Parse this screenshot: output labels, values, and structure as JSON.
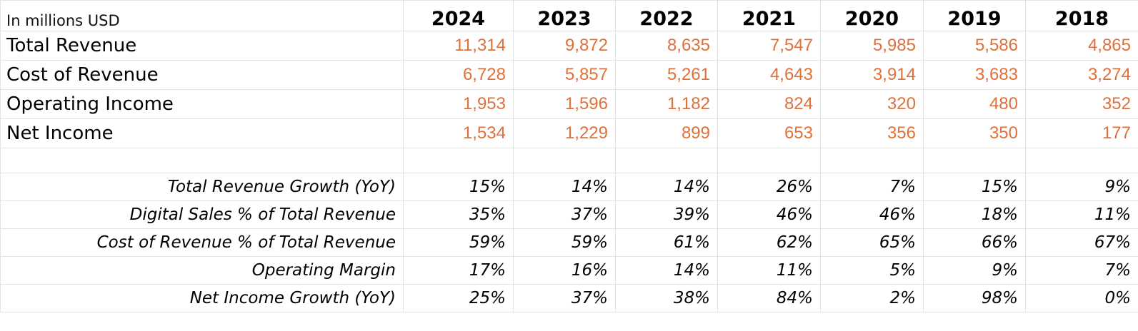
{
  "units_label": "In millions USD",
  "years": [
    "2024",
    "2023",
    "2022",
    "2021",
    "2020",
    "2019",
    "2018"
  ],
  "financials": [
    {
      "label": "Total Revenue",
      "values": [
        "11,314",
        "9,872",
        "8,635",
        "7,547",
        "5,985",
        "5,586",
        "4,865"
      ]
    },
    {
      "label": "Cost of Revenue",
      "values": [
        "6,728",
        "5,857",
        "5,261",
        "4,643",
        "3,914",
        "3,683",
        "3,274"
      ]
    },
    {
      "label": "Operating Income",
      "values": [
        "1,953",
        "1,596",
        "1,182",
        "824",
        "320",
        "480",
        "352"
      ]
    },
    {
      "label": "Net Income",
      "values": [
        "1,534",
        "1,229",
        "899",
        "653",
        "356",
        "350",
        "177"
      ]
    }
  ],
  "ratios": [
    {
      "label": "Total Revenue Growth (YoY)",
      "values": [
        "15%",
        "14%",
        "14%",
        "26%",
        "7%",
        "15%",
        "9%"
      ]
    },
    {
      "label": "Digital Sales % of Total Revenue",
      "values": [
        "35%",
        "37%",
        "39%",
        "46%",
        "46%",
        "18%",
        "11%"
      ]
    },
    {
      "label": "Cost of Revenue % of Total Revenue",
      "values": [
        "59%",
        "59%",
        "61%",
        "62%",
        "65%",
        "66%",
        "67%"
      ]
    },
    {
      "label": "Operating Margin",
      "values": [
        "17%",
        "16%",
        "14%",
        "11%",
        "5%",
        "9%",
        "7%"
      ]
    },
    {
      "label": "Net Income Growth (YoY)",
      "values": [
        "25%",
        "37%",
        "38%",
        "84%",
        "2%",
        "98%",
        "0%"
      ]
    }
  ],
  "colors": {
    "financial_values": "#e0703a",
    "gridlines": "#e2e2e2"
  }
}
